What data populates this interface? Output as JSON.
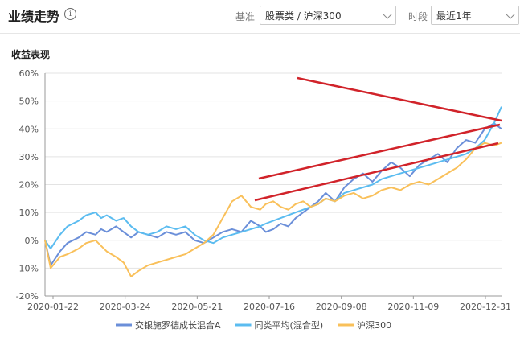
{
  "header": {
    "title": "业绩走势",
    "info_icon": "info-icon",
    "benchmark_label": "基准",
    "benchmark_value": "股票类 / 沪深300",
    "period_label": "时段",
    "period_value": "最近1年"
  },
  "chart_title": "收益表现",
  "colors": {
    "fund": "#6b8fd9",
    "peer": "#5bbcf0",
    "index": "#f9c05a",
    "annot": "#d1232a"
  },
  "chart_data": {
    "type": "line",
    "title": "收益表现",
    "xlabel": "",
    "ylabel": "",
    "x_ticks": [
      "2020-01-22",
      "2020-03-24",
      "2020-05-21",
      "2020-07-16",
      "2020-09-08",
      "2020-11-09",
      "2020-12-31"
    ],
    "y_ticks": [
      "60%",
      "50%",
      "40%",
      "30%",
      "20%",
      "10%",
      "0%",
      "-10%",
      "-20%"
    ],
    "ylim": [
      -20,
      60
    ],
    "grid": true,
    "legend_position": "bottom",
    "series": [
      {
        "name": "交银施罗德成长混合A",
        "color": "#6b8fd9",
        "x": [
          0,
          3,
          8,
          12,
          18,
          22,
          27,
          30,
          33,
          38,
          42,
          46,
          50,
          55,
          60,
          65,
          70,
          75,
          80,
          85,
          90,
          95,
          100,
          105,
          110,
          115,
          118,
          122,
          126,
          130,
          134,
          138,
          142,
          146,
          150,
          155,
          160,
          165,
          170,
          175,
          180,
          185,
          190,
          195,
          200,
          205,
          210,
          215,
          220,
          225,
          230,
          235,
          240,
          244
        ],
        "y": [
          0,
          -9,
          -4,
          -1,
          1,
          3,
          2,
          4,
          3,
          5,
          3,
          1,
          3,
          2,
          1,
          3,
          2,
          3,
          0,
          -1,
          1,
          3,
          4,
          3,
          7,
          5,
          3,
          4,
          6,
          5,
          8,
          10,
          12,
          14,
          17,
          14,
          19,
          22,
          24,
          21,
          25,
          28,
          26,
          23,
          27,
          29,
          31,
          28,
          33,
          36,
          35,
          40,
          42,
          40
        ]
      },
      {
        "name": "同类平均(混合型)",
        "color": "#5bbcf0",
        "x": [
          0,
          3,
          8,
          12,
          18,
          22,
          27,
          30,
          33,
          38,
          42,
          46,
          50,
          55,
          60,
          65,
          70,
          75,
          80,
          85,
          90,
          95,
          100,
          105,
          110,
          115,
          118,
          122,
          126,
          130,
          134,
          138,
          142,
          146,
          150,
          155,
          160,
          165,
          170,
          175,
          180,
          185,
          190,
          195,
          200,
          205,
          210,
          215,
          220,
          225,
          230,
          235,
          240,
          244
        ],
        "y": [
          0,
          -3,
          2,
          5,
          7,
          9,
          10,
          8,
          9,
          7,
          8,
          5,
          3,
          2,
          3,
          5,
          4,
          5,
          2,
          0,
          -1,
          1,
          2,
          3,
          4,
          5,
          6,
          7,
          8,
          9,
          10,
          11,
          12,
          13,
          15,
          14,
          17,
          18,
          19,
          20,
          22,
          23,
          24,
          25,
          26,
          27,
          28,
          29,
          30,
          31,
          33,
          36,
          42,
          48
        ]
      },
      {
        "name": "沪深300",
        "color": "#f9c05a",
        "x": [
          0,
          3,
          8,
          12,
          18,
          22,
          27,
          30,
          33,
          38,
          42,
          46,
          50,
          55,
          60,
          65,
          70,
          75,
          80,
          85,
          90,
          95,
          100,
          105,
          110,
          115,
          118,
          122,
          126,
          130,
          134,
          138,
          142,
          146,
          150,
          155,
          160,
          165,
          170,
          175,
          180,
          185,
          190,
          195,
          200,
          205,
          210,
          215,
          220,
          225,
          230,
          235,
          240,
          244
        ],
        "y": [
          0,
          -10,
          -6,
          -5,
          -3,
          -1,
          0,
          -2,
          -4,
          -6,
          -8,
          -13,
          -11,
          -9,
          -8,
          -7,
          -6,
          -5,
          -3,
          -1,
          2,
          8,
          14,
          16,
          12,
          11,
          13,
          14,
          12,
          11,
          13,
          14,
          12,
          13,
          15,
          14,
          16,
          17,
          15,
          16,
          18,
          19,
          18,
          20,
          21,
          20,
          22,
          24,
          26,
          29,
          33,
          35,
          34,
          35
        ]
      }
    ],
    "x_range": [
      0,
      244
    ]
  },
  "legend": [
    {
      "name": "交银施罗德成长混合A"
    },
    {
      "name": "同类平均(混合型)"
    },
    {
      "name": "沪深300"
    }
  ]
}
